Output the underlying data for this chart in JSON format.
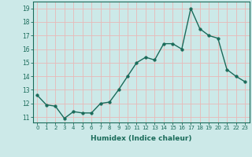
{
  "x": [
    0,
    1,
    2,
    3,
    4,
    5,
    6,
    7,
    8,
    9,
    10,
    11,
    12,
    13,
    14,
    15,
    16,
    17,
    18,
    19,
    20,
    21,
    22,
    23
  ],
  "y": [
    12.6,
    11.9,
    11.8,
    10.9,
    11.4,
    11.3,
    11.3,
    12.0,
    12.1,
    13.0,
    14.0,
    15.0,
    15.4,
    15.2,
    16.4,
    16.4,
    16.0,
    19.0,
    17.5,
    17.0,
    16.8,
    14.5,
    14.0,
    13.6
  ],
  "xlabel": "Humidex (Indice chaleur)",
  "ylim": [
    10.6,
    19.5
  ],
  "xlim": [
    -0.5,
    23.5
  ],
  "yticks": [
    11,
    12,
    13,
    14,
    15,
    16,
    17,
    18,
    19
  ],
  "xticks": [
    0,
    1,
    2,
    3,
    4,
    5,
    6,
    7,
    8,
    9,
    10,
    11,
    12,
    13,
    14,
    15,
    16,
    17,
    18,
    19,
    20,
    21,
    22,
    23
  ],
  "line_color": "#1a6b5a",
  "marker_color": "#1a6b5a",
  "bg_color": "#cce9e8",
  "grid_color": "#e8b8b8",
  "axes_color": "#1a6b5a",
  "label_color": "#1a6b5a",
  "tick_color": "#1a6b5a",
  "marker_size": 2.5,
  "line_width": 1.0
}
